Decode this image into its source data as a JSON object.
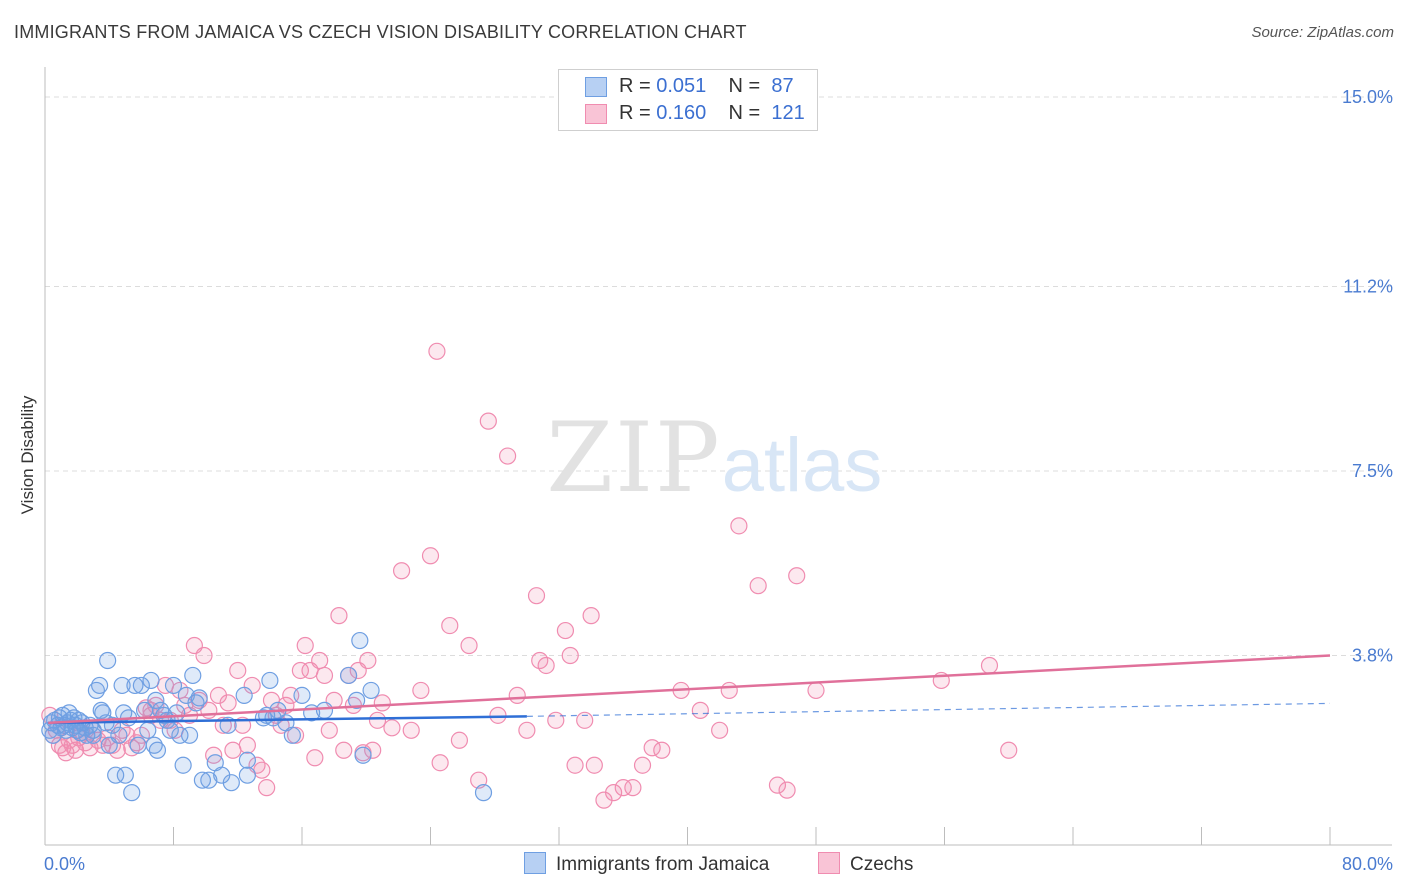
{
  "header": {
    "title": "IMMIGRANTS FROM JAMAICA VS CZECH VISION DISABILITY CORRELATION CHART",
    "source": "Source: ZipAtlas.com"
  },
  "legend": {
    "series1": {
      "r_label": "R =",
      "r_value": "0.051",
      "n_label": "N =",
      "n_value": "87"
    },
    "series2": {
      "r_label": "R =",
      "r_value": "0.160",
      "n_label": "N =",
      "n_value": "121"
    }
  },
  "bottom_legend": {
    "series1": "Immigrants from Jamaica",
    "series2": "Czechs"
  },
  "colors": {
    "blue": "#6f9fe2",
    "blue_line": "#2f6fd6",
    "pink": "#f08cb0",
    "pink_line": "#e0709a",
    "tick_text": "#4a7bd0"
  },
  "watermark": {
    "zip": "ZIP",
    "atlas": "atlas"
  },
  "chart_data": {
    "type": "scatter",
    "title": "IMMIGRANTS FROM JAMAICA VS CZECH VISION DISABILITY CORRELATION CHART",
    "xlabel": "",
    "ylabel": "Vision Disability",
    "xlim": [
      0,
      80
    ],
    "ylim": [
      0,
      15
    ],
    "x_tick_labels": [
      "0.0%",
      "80.0%"
    ],
    "y_ticks": [
      3.8,
      7.5,
      11.2,
      15.0
    ],
    "y_tick_labels": [
      "3.8%",
      "7.5%",
      "11.2%",
      "15.0%"
    ],
    "series": [
      {
        "name": "Immigrants from Jamaica",
        "r": 0.051,
        "n": 87,
        "trend": {
          "solid": [
            [
              0.2,
              2.45
            ],
            [
              30,
              2.58
            ]
          ],
          "dashed": [
            [
              30,
              2.58
            ],
            [
              80,
              2.84
            ]
          ]
        },
        "points": [
          [
            0.3,
            2.3
          ],
          [
            0.4,
            2.45
          ],
          [
            0.5,
            2.2
          ],
          [
            0.6,
            2.5
          ],
          [
            0.8,
            2.4
          ],
          [
            0.9,
            2.55
          ],
          [
            1.0,
            2.35
          ],
          [
            1.1,
            2.6
          ],
          [
            1.2,
            2.4
          ],
          [
            1.3,
            2.3
          ],
          [
            1.4,
            2.45
          ],
          [
            1.5,
            2.65
          ],
          [
            1.6,
            2.5
          ],
          [
            1.7,
            2.35
          ],
          [
            1.8,
            2.55
          ],
          [
            1.9,
            2.4
          ],
          [
            2.0,
            2.3
          ],
          [
            2.1,
            2.5
          ],
          [
            2.2,
            2.25
          ],
          [
            2.3,
            2.45
          ],
          [
            2.5,
            2.35
          ],
          [
            2.6,
            2.2
          ],
          [
            2.8,
            2.4
          ],
          [
            3.0,
            2.3
          ],
          [
            3.2,
            3.1
          ],
          [
            3.4,
            3.2
          ],
          [
            3.5,
            2.7
          ],
          [
            3.6,
            2.65
          ],
          [
            3.8,
            2.45
          ],
          [
            3.9,
            3.7
          ],
          [
            4.0,
            2.0
          ],
          [
            4.2,
            2.4
          ],
          [
            4.4,
            1.4
          ],
          [
            4.6,
            2.2
          ],
          [
            4.8,
            3.2
          ],
          [
            4.9,
            2.65
          ],
          [
            5.0,
            1.4
          ],
          [
            5.2,
            2.55
          ],
          [
            5.4,
            1.05
          ],
          [
            5.6,
            3.2
          ],
          [
            5.8,
            2.0
          ],
          [
            6.0,
            3.2
          ],
          [
            6.2,
            2.7
          ],
          [
            6.4,
            2.3
          ],
          [
            6.6,
            3.3
          ],
          [
            6.8,
            2.0
          ],
          [
            6.9,
            2.9
          ],
          [
            7.0,
            1.9
          ],
          [
            7.2,
            2.7
          ],
          [
            7.4,
            2.6
          ],
          [
            7.6,
            2.5
          ],
          [
            7.8,
            2.3
          ],
          [
            8.0,
            3.2
          ],
          [
            8.2,
            2.65
          ],
          [
            8.4,
            2.2
          ],
          [
            8.6,
            1.6
          ],
          [
            8.8,
            3.0
          ],
          [
            9.0,
            2.2
          ],
          [
            9.2,
            3.4
          ],
          [
            9.4,
            2.85
          ],
          [
            9.6,
            2.95
          ],
          [
            9.8,
            1.3
          ],
          [
            10.2,
            1.3
          ],
          [
            10.6,
            1.65
          ],
          [
            11.0,
            1.4
          ],
          [
            11.4,
            2.4
          ],
          [
            11.6,
            1.25
          ],
          [
            12.4,
            3.0
          ],
          [
            12.6,
            1.4
          ],
          [
            12.6,
            1.7
          ],
          [
            13.8,
            2.6
          ],
          [
            14.0,
            3.3
          ],
          [
            14.2,
            2.55
          ],
          [
            14.5,
            2.7
          ],
          [
            15.0,
            2.45
          ],
          [
            15.4,
            2.2
          ],
          [
            16.0,
            3.0
          ],
          [
            16.6,
            2.65
          ],
          [
            17.4,
            2.7
          ],
          [
            18.9,
            3.4
          ],
          [
            19.4,
            2.9
          ],
          [
            19.6,
            4.1
          ],
          [
            19.8,
            1.8
          ],
          [
            20.3,
            3.1
          ],
          [
            27.3,
            1.05
          ],
          [
            13.6,
            2.55
          ],
          [
            3.0,
            2.2
          ]
        ]
      },
      {
        "name": "Czechs",
        "r": 0.16,
        "n": 121,
        "trend": {
          "solid": [
            [
              0.2,
              2.45
            ],
            [
              80,
              3.8
            ]
          ]
        },
        "points": [
          [
            0.3,
            2.6
          ],
          [
            0.5,
            2.2
          ],
          [
            0.7,
            2.3
          ],
          [
            0.9,
            2.0
          ],
          [
            1.1,
            1.95
          ],
          [
            1.3,
            1.85
          ],
          [
            1.5,
            2.1
          ],
          [
            1.7,
            2.0
          ],
          [
            1.9,
            1.9
          ],
          [
            2.1,
            2.15
          ],
          [
            2.3,
            2.25
          ],
          [
            2.5,
            2.05
          ],
          [
            2.8,
            1.95
          ],
          [
            3.0,
            2.3
          ],
          [
            3.3,
            2.1
          ],
          [
            3.6,
            2.0
          ],
          [
            3.9,
            2.15
          ],
          [
            4.2,
            2.0
          ],
          [
            4.5,
            1.9
          ],
          [
            4.8,
            2.3
          ],
          [
            5.1,
            2.2
          ],
          [
            5.4,
            1.95
          ],
          [
            5.7,
            2.05
          ],
          [
            6.0,
            2.2
          ],
          [
            6.3,
            2.75
          ],
          [
            6.6,
            2.6
          ],
          [
            6.9,
            2.8
          ],
          [
            7.2,
            2.5
          ],
          [
            7.5,
            3.2
          ],
          [
            7.8,
            2.5
          ],
          [
            8.1,
            2.3
          ],
          [
            8.4,
            3.1
          ],
          [
            8.7,
            2.8
          ],
          [
            9.0,
            2.6
          ],
          [
            9.3,
            4.0
          ],
          [
            9.6,
            2.9
          ],
          [
            9.9,
            3.8
          ],
          [
            10.2,
            2.7
          ],
          [
            10.5,
            1.8
          ],
          [
            10.8,
            3.0
          ],
          [
            11.1,
            2.4
          ],
          [
            11.4,
            2.85
          ],
          [
            11.7,
            1.9
          ],
          [
            12.0,
            3.5
          ],
          [
            12.3,
            2.4
          ],
          [
            12.6,
            2.0
          ],
          [
            12.9,
            3.2
          ],
          [
            13.2,
            1.6
          ],
          [
            13.5,
            1.5
          ],
          [
            13.8,
            1.15
          ],
          [
            14.1,
            2.9
          ],
          [
            14.4,
            2.6
          ],
          [
            14.7,
            2.4
          ],
          [
            15.0,
            2.8
          ],
          [
            15.3,
            3.0
          ],
          [
            15.6,
            2.2
          ],
          [
            15.9,
            3.5
          ],
          [
            16.2,
            4.0
          ],
          [
            16.5,
            3.5
          ],
          [
            16.8,
            1.75
          ],
          [
            17.1,
            3.7
          ],
          [
            17.4,
            3.4
          ],
          [
            17.7,
            2.3
          ],
          [
            18.0,
            2.9
          ],
          [
            18.3,
            4.6
          ],
          [
            18.6,
            1.9
          ],
          [
            18.9,
            3.4
          ],
          [
            19.2,
            2.8
          ],
          [
            19.5,
            3.5
          ],
          [
            19.8,
            1.85
          ],
          [
            20.1,
            3.7
          ],
          [
            20.4,
            1.9
          ],
          [
            20.7,
            2.5
          ],
          [
            21.0,
            2.85
          ],
          [
            21.6,
            2.35
          ],
          [
            22.2,
            5.5
          ],
          [
            22.8,
            2.3
          ],
          [
            23.4,
            3.1
          ],
          [
            24.0,
            5.8
          ],
          [
            24.6,
            1.65
          ],
          [
            25.2,
            4.4
          ],
          [
            25.8,
            2.1
          ],
          [
            26.4,
            4.0
          ],
          [
            27.0,
            1.3
          ],
          [
            27.6,
            8.5
          ],
          [
            28.2,
            2.6
          ],
          [
            28.8,
            7.8
          ],
          [
            29.4,
            3.0
          ],
          [
            30.0,
            2.3
          ],
          [
            30.6,
            5.0
          ],
          [
            31.2,
            3.6
          ],
          [
            31.8,
            2.5
          ],
          [
            32.4,
            4.3
          ],
          [
            32.7,
            3.8
          ],
          [
            33.0,
            1.6
          ],
          [
            33.6,
            2.5
          ],
          [
            34.2,
            1.6
          ],
          [
            34.8,
            0.9
          ],
          [
            35.4,
            1.05
          ],
          [
            36.0,
            1.15
          ],
          [
            36.6,
            1.15
          ],
          [
            37.2,
            1.6
          ],
          [
            37.8,
            1.95
          ],
          [
            38.4,
            1.9
          ],
          [
            39.6,
            3.1
          ],
          [
            40.8,
            2.7
          ],
          [
            42.0,
            2.3
          ],
          [
            42.6,
            3.1
          ],
          [
            43.2,
            6.4
          ],
          [
            44.4,
            5.2
          ],
          [
            45.6,
            1.2
          ],
          [
            46.2,
            1.1
          ],
          [
            46.8,
            5.4
          ],
          [
            48.0,
            3.1
          ],
          [
            55.8,
            3.3
          ],
          [
            58.8,
            3.6
          ],
          [
            60.0,
            1.9
          ],
          [
            34.0,
            4.6
          ],
          [
            24.4,
            9.9
          ],
          [
            30.8,
            3.7
          ],
          [
            6.6,
            2.7
          ]
        ]
      }
    ]
  }
}
